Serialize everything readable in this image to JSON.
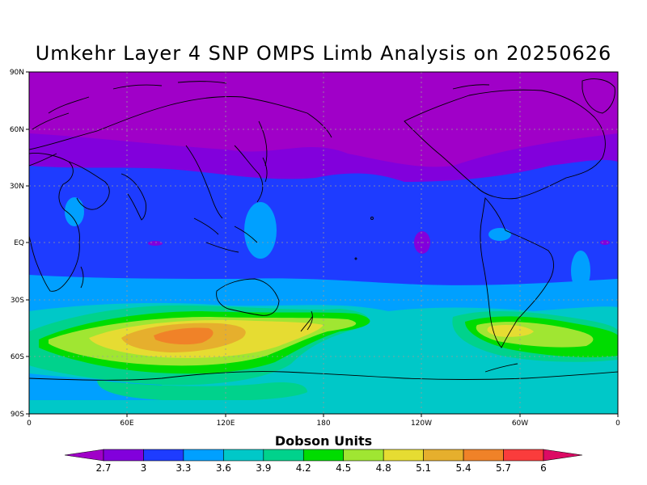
{
  "title": "Umkehr Layer 4 SNP OMPS Limb Analysis on 20250626",
  "lat_labels": [
    "90N",
    "60N",
    "30N",
    "EQ",
    "30S",
    "60S",
    "90S"
  ],
  "lon_labels": [
    "0",
    "60E",
    "120E",
    "180",
    "120W",
    "60W",
    "0"
  ],
  "colorbar": {
    "title": "Dobson Units",
    "levels": [
      "2.7",
      "3",
      "3.3",
      "3.6",
      "3.9",
      "4.2",
      "4.5",
      "4.8",
      "5.1",
      "5.4",
      "5.7",
      "6"
    ],
    "colors": [
      "#a000c8",
      "#8200dc",
      "#1e3cff",
      "#00a0ff",
      "#00c8c8",
      "#00d28c",
      "#00dc00",
      "#a0e632",
      "#e6dc32",
      "#e6af2d",
      "#f08228",
      "#fa3c3c",
      "#dc0a64"
    ]
  },
  "map": {
    "lon_range": [
      0,
      360
    ],
    "lat_range": [
      -90,
      90
    ],
    "field_bands_top_to_bottom": [
      {
        "value_range": "2.7-3",
        "color": "#a000c8"
      },
      {
        "value_range": "3-3.3",
        "color": "#8200dc"
      },
      {
        "value_range": "3.3-3.6",
        "color": "#1e3cff"
      },
      {
        "value_range": "3.6-3.9",
        "color": "#00a0ff"
      },
      {
        "value_range": "3.9-4.2",
        "color": "#00c8c8"
      },
      {
        "value_range": "4.2-4.5",
        "color": "#00d28c"
      },
      {
        "value_range": "4.5-4.8",
        "color": "#00dc00"
      },
      {
        "value_range": "4.8-5.1",
        "color": "#a0e632"
      },
      {
        "value_range": "5.1-5.4",
        "color": "#e6dc32"
      },
      {
        "value_range": "5.4-5.7",
        "color": "#e6af2d"
      },
      {
        "value_range": "5.7-6",
        "color": "#f08228"
      }
    ]
  }
}
